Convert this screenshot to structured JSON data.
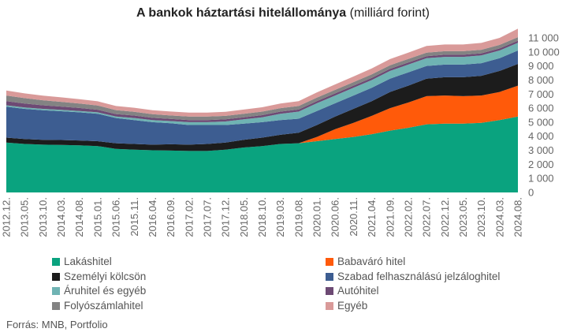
{
  "chart_data": {
    "type": "area",
    "title": "A bankok háztartási hitelállománya",
    "subtitle": "(milliárd forint)",
    "source": "Forrás: MNB, Portfolio",
    "ylim": [
      0,
      11000
    ],
    "y_ticks": [
      "0",
      "1 000",
      "2 000",
      "3 000",
      "4 000",
      "5 000",
      "6 000",
      "7 000",
      "8 000",
      "9 000",
      "10 000",
      "11 000"
    ],
    "x": [
      "2012.12.",
      "2013.05.",
      "2013.10.",
      "2014.03.",
      "2014.08.",
      "2015.01.",
      "2015.06.",
      "2015.11.",
      "2016.04.",
      "2016.09.",
      "2017.02.",
      "2017.07.",
      "2017.12.",
      "2018.05.",
      "2018.10.",
      "2019.03.",
      "2019.08.",
      "2020.01.",
      "2020.06.",
      "2020.11.",
      "2021.04.",
      "2021.09.",
      "2022.02.",
      "2022.07.",
      "2022.12.",
      "2023.05.",
      "2023.10.",
      "2024.03.",
      "2024.08."
    ],
    "series": [
      {
        "name": "Lakáshitel",
        "color": "#0aa37f",
        "values": [
          3550,
          3450,
          3400,
          3380,
          3350,
          3300,
          3100,
          3050,
          3000,
          2980,
          2950,
          2950,
          3050,
          3200,
          3300,
          3450,
          3500,
          3650,
          3800,
          3950,
          4150,
          4400,
          4600,
          4850,
          4900,
          4900,
          4950,
          5150,
          5400
        ]
      },
      {
        "name": "Babaváró hitel",
        "color": "#ff5a0a",
        "values": [
          0,
          0,
          0,
          0,
          0,
          0,
          0,
          0,
          0,
          0,
          0,
          0,
          0,
          0,
          0,
          0,
          0,
          300,
          700,
          1000,
          1300,
          1600,
          1800,
          2000,
          2000,
          1950,
          1950,
          2000,
          2200
        ]
      },
      {
        "name": "Személyi kölcsön",
        "color": "#1c1c1c",
        "values": [
          350,
          350,
          350,
          350,
          350,
          350,
          400,
          400,
          400,
          450,
          450,
          500,
          500,
          550,
          600,
          650,
          750,
          850,
          900,
          1000,
          1050,
          1150,
          1200,
          1250,
          1300,
          1350,
          1400,
          1500,
          1550
        ]
      },
      {
        "name": "Szabad felhasználású jelzáloghitel",
        "color": "#3d5d91",
        "values": [
          2200,
          2150,
          2100,
          2050,
          2000,
          1950,
          1800,
          1700,
          1600,
          1500,
          1400,
          1350,
          1250,
          1150,
          1100,
          1050,
          1000,
          1000,
          950,
          950,
          950,
          950,
          950,
          900,
          900,
          900,
          900,
          900,
          950
        ]
      },
      {
        "name": "Áruhitel és egyéb",
        "color": "#6fb3b3",
        "values": [
          100,
          100,
          100,
          100,
          100,
          100,
          100,
          150,
          150,
          150,
          200,
          200,
          250,
          300,
          350,
          450,
          500,
          550,
          550,
          550,
          550,
          550,
          550,
          550,
          550,
          550,
          550,
          550,
          550
        ]
      },
      {
        "name": "Autóhitel",
        "color": "#6d4a74",
        "values": [
          300,
          280,
          250,
          230,
          210,
          190,
          180,
          170,
          160,
          150,
          150,
          150,
          150,
          150,
          150,
          150,
          150,
          150,
          150,
          150,
          150,
          150,
          150,
          150,
          150,
          150,
          150,
          150,
          150
        ]
      },
      {
        "name": "Folyószámlahitel",
        "color": "#838383",
        "values": [
          400,
          380,
          360,
          340,
          320,
          300,
          280,
          270,
          260,
          250,
          250,
          250,
          250,
          250,
          250,
          250,
          250,
          250,
          250,
          250,
          250,
          250,
          250,
          250,
          250,
          250,
          250,
          250,
          250
        ]
      },
      {
        "name": "Egyéb",
        "color": "#d99a99",
        "values": [
          350,
          340,
          330,
          320,
          310,
          300,
          290,
          285,
          280,
          280,
          280,
          280,
          290,
          300,
          310,
          330,
          350,
          370,
          390,
          400,
          420,
          440,
          450,
          470,
          480,
          480,
          490,
          500,
          600
        ]
      }
    ]
  }
}
